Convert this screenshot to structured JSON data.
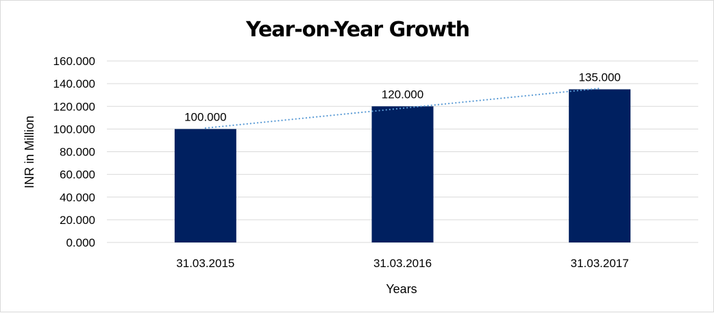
{
  "chart_data": {
    "type": "bar",
    "title": "Year-on-Year Growth",
    "xlabel": "Years",
    "ylabel": "INR in Million",
    "categories": [
      "31.03.2015",
      "31.03.2016",
      "31.03.2017"
    ],
    "values": [
      100,
      120,
      135
    ],
    "data_labels": [
      "100.000",
      "120.000",
      "135.000"
    ],
    "ylim": [
      0,
      160
    ],
    "yticks": [
      0,
      20,
      40,
      60,
      80,
      100,
      120,
      140,
      160
    ],
    "ytick_labels": [
      "0.000",
      "20.000",
      "40.000",
      "60.000",
      "80.000",
      "100.000",
      "120.000",
      "140.000",
      "160.000"
    ],
    "grid": true,
    "legend": "none",
    "trendline": "linear",
    "colors": {
      "bar": "#002060",
      "trendline": "#5b9bd5",
      "grid": "#d9d9d9"
    }
  }
}
